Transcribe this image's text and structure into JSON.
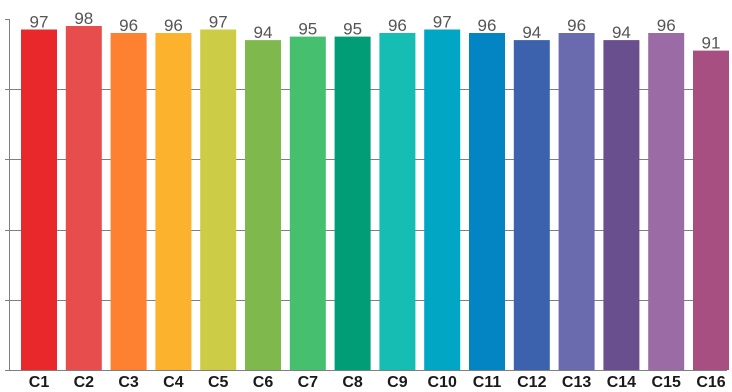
{
  "chart_data": {
    "type": "bar",
    "categories": [
      "C1",
      "C2",
      "C3",
      "C4",
      "C5",
      "C6",
      "C7",
      "C8",
      "C9",
      "C10",
      "C11",
      "C12",
      "C13",
      "C14",
      "C15",
      "C16"
    ],
    "values": [
      97,
      98,
      96,
      96,
      97,
      94,
      95,
      95,
      96,
      97,
      96,
      94,
      96,
      94,
      96,
      91
    ],
    "colors": [
      "#e8282b",
      "#e84d4d",
      "#fd8130",
      "#fdb22e",
      "#cccc46",
      "#7fb84c",
      "#46c06e",
      "#009d76",
      "#16bdb3",
      "#00a6c4",
      "#0385c4",
      "#3c62ad",
      "#6a6aaf",
      "#694f8d",
      "#9b6ba5",
      "#a84f82"
    ],
    "ylim": [
      0,
      100
    ],
    "grid": true,
    "data_labels": true,
    "title": "",
    "xlabel": "",
    "ylabel": ""
  }
}
